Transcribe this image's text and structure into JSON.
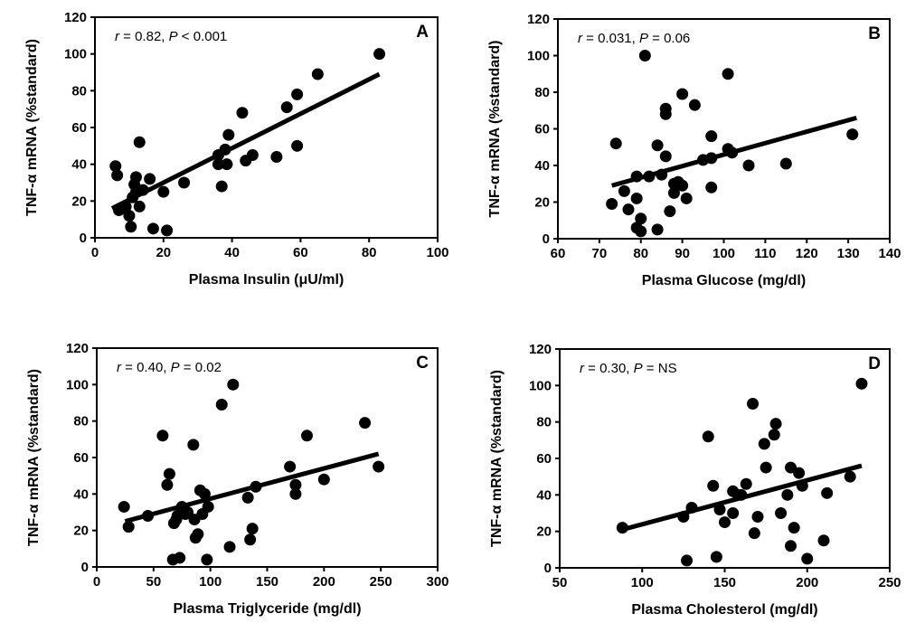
{
  "chart_data": [
    {
      "type": "scatter",
      "panel": "A",
      "annotation": {
        "r": "0.82",
        "p_op": "<",
        "p_val": "0.001"
      },
      "xlabel": "Plasma Insulin (μU/ml)",
      "ylabel": "TNF-α mRNA (%standard)",
      "xlim": [
        0,
        100
      ],
      "xticks": [
        0,
        20,
        40,
        60,
        80,
        100
      ],
      "ylim": [
        0,
        120
      ],
      "yticks": [
        0,
        20,
        40,
        60,
        80,
        100,
        120
      ],
      "grid": false,
      "trendline": [
        [
          5,
          16
        ],
        [
          83,
          89
        ]
      ],
      "points": [
        [
          6,
          39
        ],
        [
          6.5,
          34
        ],
        [
          7,
          15
        ],
        [
          9,
          17
        ],
        [
          10,
          12
        ],
        [
          10.5,
          6
        ],
        [
          11,
          22
        ],
        [
          11.5,
          29
        ],
        [
          12,
          33
        ],
        [
          12,
          25
        ],
        [
          13,
          17
        ],
        [
          13,
          52
        ],
        [
          14,
          26
        ],
        [
          16,
          32
        ],
        [
          17,
          5
        ],
        [
          20,
          25
        ],
        [
          21,
          4
        ],
        [
          26,
          30
        ],
        [
          36,
          40
        ],
        [
          36,
          45
        ],
        [
          37,
          28
        ],
        [
          38,
          48
        ],
        [
          38.5,
          40
        ],
        [
          39,
          56
        ],
        [
          43,
          68
        ],
        [
          44,
          42
        ],
        [
          46,
          45
        ],
        [
          53,
          44
        ],
        [
          56,
          71
        ],
        [
          59,
          78
        ],
        [
          59,
          50
        ],
        [
          65,
          89
        ],
        [
          83,
          100
        ]
      ]
    },
    {
      "type": "scatter",
      "panel": "B",
      "annotation": {
        "r": "0.031",
        "p_op": "=",
        "p_val": "0.06"
      },
      "xlabel": "Plasma Glucose (mg/dl)",
      "ylabel": "TNF-α mRNA (%standard)",
      "xlim": [
        60,
        140
      ],
      "xticks": [
        60,
        70,
        80,
        90,
        100,
        110,
        120,
        130,
        140
      ],
      "ylim": [
        0,
        120
      ],
      "yticks": [
        0,
        20,
        40,
        60,
        80,
        100,
        120
      ],
      "grid": false,
      "trendline": [
        [
          73,
          29
        ],
        [
          132,
          66
        ]
      ],
      "points": [
        [
          73,
          19
        ],
        [
          74,
          52
        ],
        [
          76,
          26
        ],
        [
          77,
          16
        ],
        [
          79,
          6
        ],
        [
          79,
          22
        ],
        [
          79,
          34
        ],
        [
          80,
          11
        ],
        [
          80,
          4
        ],
        [
          81,
          100
        ],
        [
          82,
          34
        ],
        [
          84,
          5
        ],
        [
          84,
          51
        ],
        [
          85,
          35
        ],
        [
          86,
          45
        ],
        [
          86,
          71
        ],
        [
          86,
          68
        ],
        [
          87,
          15
        ],
        [
          88,
          25
        ],
        [
          88,
          30
        ],
        [
          89,
          31
        ],
        [
          90,
          29
        ],
        [
          90,
          79
        ],
        [
          91,
          22
        ],
        [
          93,
          73
        ],
        [
          95,
          43
        ],
        [
          97,
          28
        ],
        [
          97,
          56
        ],
        [
          97,
          44
        ],
        [
          101,
          49
        ],
        [
          101,
          90
        ],
        [
          102,
          47
        ],
        [
          106,
          40
        ],
        [
          115,
          41
        ],
        [
          131,
          57
        ]
      ]
    },
    {
      "type": "scatter",
      "panel": "C",
      "annotation": {
        "r": "0.40",
        "p_op": "=",
        "p_val": "0.02"
      },
      "xlabel": "Plasma Triglyceride (mg/dl)",
      "ylabel": "TNF-α mRNA (%standard)",
      "xlim": [
        0,
        300
      ],
      "xticks": [
        0,
        50,
        100,
        150,
        200,
        250,
        300
      ],
      "ylim": [
        0,
        120
      ],
      "yticks": [
        0,
        20,
        40,
        60,
        80,
        100,
        120
      ],
      "grid": false,
      "trendline": [
        [
          25,
          25
        ],
        [
          248,
          62
        ]
      ],
      "points": [
        [
          24,
          33
        ],
        [
          28,
          22
        ],
        [
          45,
          28
        ],
        [
          58,
          72
        ],
        [
          62,
          45
        ],
        [
          64,
          51
        ],
        [
          67,
          4
        ],
        [
          68,
          24
        ],
        [
          70,
          26
        ],
        [
          71,
          28
        ],
        [
          73,
          5
        ],
        [
          75,
          33
        ],
        [
          78,
          29
        ],
        [
          80,
          30
        ],
        [
          85,
          67
        ],
        [
          86,
          26
        ],
        [
          87,
          16
        ],
        [
          89,
          18
        ],
        [
          91,
          42
        ],
        [
          93,
          29
        ],
        [
          95,
          40
        ],
        [
          97,
          4
        ],
        [
          98,
          33
        ],
        [
          110,
          89
        ],
        [
          117,
          11
        ],
        [
          120,
          100
        ],
        [
          133,
          38
        ],
        [
          135,
          15
        ],
        [
          137,
          21
        ],
        [
          140,
          44
        ],
        [
          170,
          55
        ],
        [
          175,
          40
        ],
        [
          175,
          45
        ],
        [
          185,
          72
        ],
        [
          200,
          48
        ],
        [
          236,
          79
        ],
        [
          248,
          55
        ]
      ]
    },
    {
      "type": "scatter",
      "panel": "D",
      "annotation": {
        "r": "0.30",
        "p_op": "=",
        "p_val": "NS"
      },
      "xlabel": "Plasma Cholesterol (mg/dl)",
      "ylabel": "TNF-α mRNA (%standard)",
      "xlim": [
        50,
        250
      ],
      "xticks": [
        50,
        100,
        150,
        200,
        250
      ],
      "ylim": [
        0,
        120
      ],
      "yticks": [
        0,
        20,
        40,
        60,
        80,
        100,
        120
      ],
      "grid": false,
      "trendline": [
        [
          88,
          21
        ],
        [
          233,
          56
        ]
      ],
      "points": [
        [
          88,
          22
        ],
        [
          125,
          28
        ],
        [
          127,
          4
        ],
        [
          130,
          33
        ],
        [
          140,
          72
        ],
        [
          143,
          45
        ],
        [
          145,
          6
        ],
        [
          147,
          32
        ],
        [
          150,
          25
        ],
        [
          155,
          42
        ],
        [
          155,
          30
        ],
        [
          158,
          40
        ],
        [
          160,
          40
        ],
        [
          163,
          46
        ],
        [
          167,
          90
        ],
        [
          168,
          19
        ],
        [
          170,
          28
        ],
        [
          174,
          68
        ],
        [
          175,
          55
        ],
        [
          180,
          73
        ],
        [
          181,
          79
        ],
        [
          184,
          30
        ],
        [
          188,
          40
        ],
        [
          190,
          12
        ],
        [
          190,
          55
        ],
        [
          192,
          22
        ],
        [
          195,
          52
        ],
        [
          197,
          45
        ],
        [
          200,
          5
        ],
        [
          210,
          15
        ],
        [
          212,
          41
        ],
        [
          226,
          50
        ],
        [
          233,
          101
        ]
      ]
    }
  ]
}
